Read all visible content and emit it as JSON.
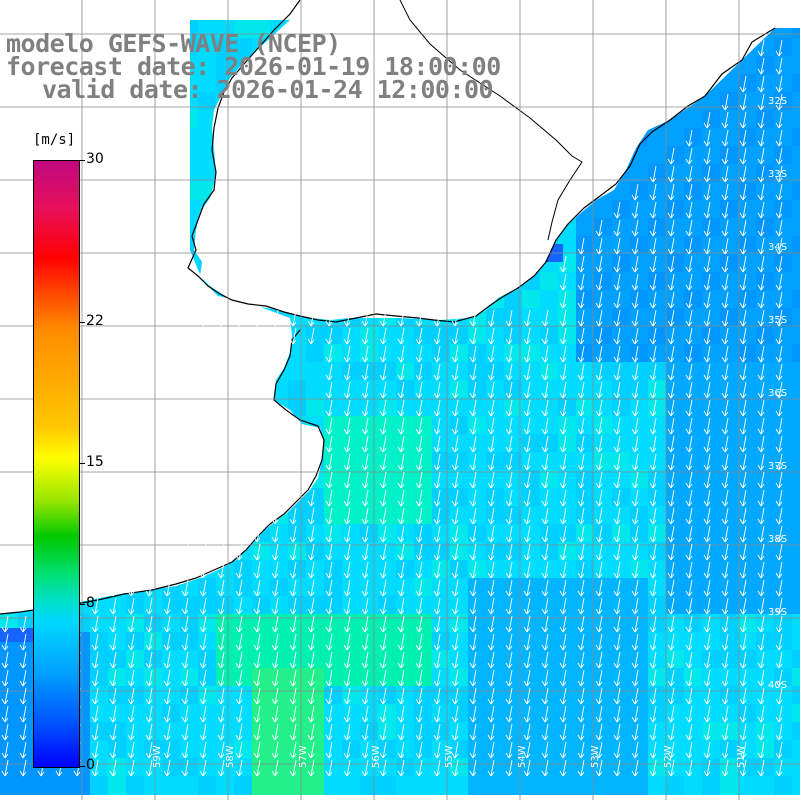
{
  "title": {
    "line1": "modelo GEFS-WAVE (NCEP)",
    "line2": "forecast date: 2026-01-19 18:00:00",
    "line3": "valid date: 2026-01-24 12:00:00"
  },
  "colorbar": {
    "unit": "[m/s]",
    "ticks": [
      {
        "label": "30",
        "value": 30
      },
      {
        "label": "22",
        "value": 22
      },
      {
        "label": "15",
        "value": 15
      },
      {
        "label": "8",
        "value": 8
      },
      {
        "label": "0",
        "value": 0
      }
    ],
    "range": [
      0,
      30
    ]
  },
  "map": {
    "variable": "wind speed and direction",
    "longitude_labels": [
      "59W",
      "58W",
      "57W",
      "56W",
      "55W",
      "54W",
      "53W",
      "52W",
      "51W"
    ],
    "latitude_labels": [
      "32S",
      "33S",
      "34S",
      "35S",
      "36S",
      "37S",
      "38S",
      "39S",
      "40S"
    ],
    "prevailing_wind": "southward, slightly toward southwest",
    "colors": {
      "land": "#ffffff",
      "coast": "#000000",
      "grid": "#8a8a8a",
      "arrow": "#ffffff",
      "title_text": "#808080"
    }
  }
}
